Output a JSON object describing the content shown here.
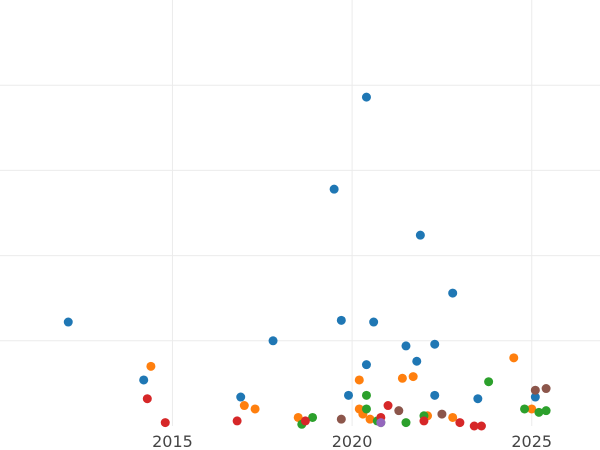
{
  "chart_data": {
    "type": "scatter",
    "title": "",
    "xlabel": "",
    "ylabel": "",
    "xlim": [
      2010.2,
      2026.9
    ],
    "ylim": [
      0,
      25
    ],
    "grid": true,
    "x_ticks": [
      {
        "value": 2015,
        "label": "2015"
      },
      {
        "value": 2020,
        "label": "2020"
      },
      {
        "value": 2025,
        "label": "2025"
      }
    ],
    "y_gridlines": [
      5,
      10,
      15,
      20
    ],
    "series": [
      {
        "color": "#1f77b4",
        "points": [
          {
            "x": 2012.1,
            "y": 6.1
          },
          {
            "x": 2014.2,
            "y": 2.7
          },
          {
            "x": 2016.9,
            "y": 1.7
          },
          {
            "x": 2017.8,
            "y": 5.0
          },
          {
            "x": 2019.5,
            "y": 13.9
          },
          {
            "x": 2019.7,
            "y": 6.2
          },
          {
            "x": 2019.9,
            "y": 1.8
          },
          {
            "x": 2020.4,
            "y": 19.3
          },
          {
            "x": 2020.4,
            "y": 3.6
          },
          {
            "x": 2020.6,
            "y": 6.1
          },
          {
            "x": 2021.5,
            "y": 4.7
          },
          {
            "x": 2021.8,
            "y": 3.8
          },
          {
            "x": 2021.9,
            "y": 11.2
          },
          {
            "x": 2022.3,
            "y": 4.8
          },
          {
            "x": 2022.3,
            "y": 1.8
          },
          {
            "x": 2022.8,
            "y": 7.8
          },
          {
            "x": 2023.5,
            "y": 1.6
          },
          {
            "x": 2025.1,
            "y": 1.7
          }
        ]
      },
      {
        "color": "#ff7f0e",
        "points": [
          {
            "x": 2014.4,
            "y": 3.5
          },
          {
            "x": 2017.0,
            "y": 1.2
          },
          {
            "x": 2017.3,
            "y": 1.0
          },
          {
            "x": 2018.5,
            "y": 0.5
          },
          {
            "x": 2020.2,
            "y": 2.7
          },
          {
            "x": 2020.2,
            "y": 1.0
          },
          {
            "x": 2020.3,
            "y": 0.7
          },
          {
            "x": 2020.5,
            "y": 0.4
          },
          {
            "x": 2021.4,
            "y": 2.8
          },
          {
            "x": 2021.7,
            "y": 2.9
          },
          {
            "x": 2022.1,
            "y": 0.6
          },
          {
            "x": 2022.8,
            "y": 0.5
          },
          {
            "x": 2024.5,
            "y": 4.0
          },
          {
            "x": 2025.0,
            "y": 1.0
          }
        ]
      },
      {
        "color": "#2ca02c",
        "points": [
          {
            "x": 2018.6,
            "y": 0.1
          },
          {
            "x": 2018.9,
            "y": 0.5
          },
          {
            "x": 2020.4,
            "y": 1.0
          },
          {
            "x": 2020.4,
            "y": 1.8
          },
          {
            "x": 2020.7,
            "y": 0.3
          },
          {
            "x": 2020.8,
            "y": 0.2
          },
          {
            "x": 2021.5,
            "y": 0.2
          },
          {
            "x": 2022.0,
            "y": 0.6
          },
          {
            "x": 2023.8,
            "y": 2.6
          },
          {
            "x": 2024.8,
            "y": 1.0
          },
          {
            "x": 2025.2,
            "y": 0.8
          },
          {
            "x": 2025.4,
            "y": 0.9
          }
        ]
      },
      {
        "color": "#d62728",
        "points": [
          {
            "x": 2014.3,
            "y": 1.6
          },
          {
            "x": 2014.8,
            "y": 0.2
          },
          {
            "x": 2016.8,
            "y": 0.3
          },
          {
            "x": 2018.7,
            "y": 0.3
          },
          {
            "x": 2020.8,
            "y": 0.5
          },
          {
            "x": 2021.0,
            "y": 1.2
          },
          {
            "x": 2022.0,
            "y": 0.3
          },
          {
            "x": 2023.0,
            "y": 0.2
          },
          {
            "x": 2023.4,
            "y": 0.0
          },
          {
            "x": 2023.6,
            "y": 0.0
          }
        ]
      },
      {
        "color": "#9467bd",
        "points": [
          {
            "x": 2020.8,
            "y": 0.2
          }
        ]
      },
      {
        "color": "#8c564b",
        "points": [
          {
            "x": 2019.7,
            "y": 0.4
          },
          {
            "x": 2021.3,
            "y": 0.9
          },
          {
            "x": 2022.5,
            "y": 0.7
          },
          {
            "x": 2025.1,
            "y": 2.1
          },
          {
            "x": 2025.4,
            "y": 2.2
          }
        ]
      }
    ]
  }
}
